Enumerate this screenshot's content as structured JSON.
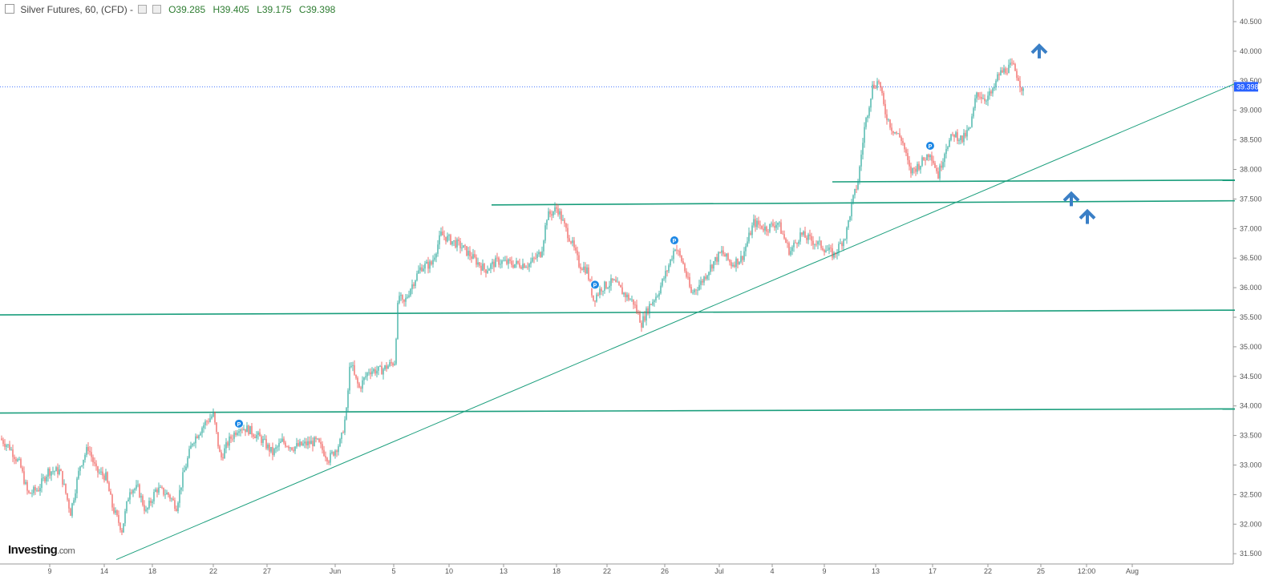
{
  "header": {
    "title": "Silver Futures, 60, (CFD)",
    "dash": "-",
    "open": "O39.285",
    "high": "H39.405",
    "low": "L39.175",
    "close": "C39.398"
  },
  "logo": {
    "brand": "Investing",
    "suffix": ".com"
  },
  "colors": {
    "up": "#26a69a",
    "down": "#ef5350",
    "line": "#1a9e7c",
    "arrow": "#3a7fc6",
    "price": "#2962ff"
  },
  "chart_data": {
    "type": "candlestick",
    "title": "Silver Futures, 60, (CFD)",
    "yticks": [
      "31.500",
      "32.000",
      "32.500",
      "33.000",
      "33.500",
      "34.000",
      "34.500",
      "35.000",
      "35.500",
      "36.000",
      "36.500",
      "37.000",
      "37.500",
      "38.000",
      "38.500",
      "39.000",
      "39.500",
      "40.000",
      "40.500"
    ],
    "ylim": [
      31.4,
      40.75
    ],
    "xticks": [
      "9",
      "14",
      "18",
      "22",
      "27",
      "Jun",
      "5",
      "10",
      "13",
      "18",
      "22",
      "26",
      "Jul",
      "4",
      "9",
      "13",
      "17",
      "22",
      "25",
      "12:00",
      "Aug"
    ],
    "last_price_label": "39.398",
    "last_price": 39.398,
    "price_path": [
      [
        0,
        33.45
      ],
      [
        12,
        33.3
      ],
      [
        25,
        33.0
      ],
      [
        35,
        32.5
      ],
      [
        48,
        32.6
      ],
      [
        60,
        32.9
      ],
      [
        75,
        32.9
      ],
      [
        88,
        32.2
      ],
      [
        100,
        33.0
      ],
      [
        110,
        33.3
      ],
      [
        120,
        32.9
      ],
      [
        132,
        32.8
      ],
      [
        140,
        32.3
      ],
      [
        152,
        31.9
      ],
      [
        162,
        32.6
      ],
      [
        172,
        32.6
      ],
      [
        182,
        32.2
      ],
      [
        195,
        32.6
      ],
      [
        210,
        32.5
      ],
      [
        220,
        32.3
      ],
      [
        228,
        32.8
      ],
      [
        240,
        33.4
      ],
      [
        255,
        33.7
      ],
      [
        266,
        33.85
      ],
      [
        275,
        33.1
      ],
      [
        285,
        33.4
      ],
      [
        298,
        33.65
      ],
      [
        310,
        33.6
      ],
      [
        325,
        33.45
      ],
      [
        340,
        33.2
      ],
      [
        352,
        33.4
      ],
      [
        365,
        33.3
      ],
      [
        380,
        33.35
      ],
      [
        395,
        33.4
      ],
      [
        410,
        33.1
      ],
      [
        425,
        33.4
      ],
      [
        432,
        33.9
      ],
      [
        437,
        34.8
      ],
      [
        442,
        34.5
      ],
      [
        448,
        34.3
      ],
      [
        460,
        34.6
      ],
      [
        475,
        34.6
      ],
      [
        492,
        34.75
      ],
      [
        497,
        35.9
      ],
      [
        503,
        35.7
      ],
      [
        512,
        36.0
      ],
      [
        525,
        36.35
      ],
      [
        538,
        36.4
      ],
      [
        550,
        36.9
      ],
      [
        562,
        36.8
      ],
      [
        575,
        36.7
      ],
      [
        590,
        36.5
      ],
      [
        605,
        36.3
      ],
      [
        620,
        36.45
      ],
      [
        640,
        36.4
      ],
      [
        660,
        36.4
      ],
      [
        675,
        36.6
      ],
      [
        682,
        37.2
      ],
      [
        695,
        37.35
      ],
      [
        705,
        37.0
      ],
      [
        712,
        36.8
      ],
      [
        722,
        36.4
      ],
      [
        732,
        36.3
      ],
      [
        740,
        35.8
      ],
      [
        750,
        36.0
      ],
      [
        765,
        36.1
      ],
      [
        778,
        35.9
      ],
      [
        790,
        35.75
      ],
      [
        800,
        35.4
      ],
      [
        810,
        35.7
      ],
      [
        820,
        35.9
      ],
      [
        832,
        36.3
      ],
      [
        842,
        36.7
      ],
      [
        852,
        36.4
      ],
      [
        862,
        35.9
      ],
      [
        875,
        36.1
      ],
      [
        888,
        36.4
      ],
      [
        900,
        36.6
      ],
      [
        912,
        36.4
      ],
      [
        925,
        36.5
      ],
      [
        940,
        37.1
      ],
      [
        955,
        37.0
      ],
      [
        970,
        37.1
      ],
      [
        985,
        36.6
      ],
      [
        998,
        36.9
      ],
      [
        1012,
        36.8
      ],
      [
        1025,
        36.7
      ],
      [
        1040,
        36.55
      ],
      [
        1055,
        36.9
      ],
      [
        1062,
        37.4
      ],
      [
        1070,
        37.8
      ],
      [
        1078,
        38.7
      ],
      [
        1088,
        39.4
      ],
      [
        1096,
        39.5
      ],
      [
        1103,
        39.0
      ],
      [
        1112,
        38.7
      ],
      [
        1125,
        38.5
      ],
      [
        1135,
        37.95
      ],
      [
        1148,
        38.1
      ],
      [
        1160,
        38.3
      ],
      [
        1170,
        37.9
      ],
      [
        1180,
        38.4
      ],
      [
        1190,
        38.6
      ],
      [
        1200,
        38.5
      ],
      [
        1210,
        38.7
      ],
      [
        1218,
        39.3
      ],
      [
        1228,
        39.2
      ],
      [
        1238,
        39.3
      ],
      [
        1245,
        39.6
      ],
      [
        1255,
        39.7
      ],
      [
        1263,
        39.75
      ],
      [
        1270,
        39.55
      ],
      [
        1276,
        39.3
      ]
    ],
    "trendlines": [
      {
        "kind": "horizontal",
        "from": [
          0,
          35.54
        ],
        "to": [
          1540,
          35.62
        ]
      },
      {
        "kind": "horizontal",
        "from": [
          0,
          33.88
        ],
        "to": [
          1540,
          33.95
        ]
      },
      {
        "kind": "horizontal",
        "from": [
          613,
          37.4
        ],
        "to": [
          1540,
          37.47
        ]
      },
      {
        "kind": "horizontal",
        "from": [
          1038,
          37.79
        ],
        "to": [
          1540,
          37.82
        ]
      },
      {
        "kind": "trend",
        "from": [
          145,
          31.4
        ],
        "to": [
          1540,
          39.45
        ]
      }
    ],
    "arrows": [
      [
        1296,
        40.0
      ],
      [
        1336,
        37.5
      ],
      [
        1356,
        37.2
      ]
    ],
    "event_markers": [
      [
        298,
        33.7
      ],
      [
        742,
        36.05
      ],
      [
        841,
        36.8
      ],
      [
        1160,
        38.4
      ]
    ],
    "event_marker_label": "P"
  }
}
